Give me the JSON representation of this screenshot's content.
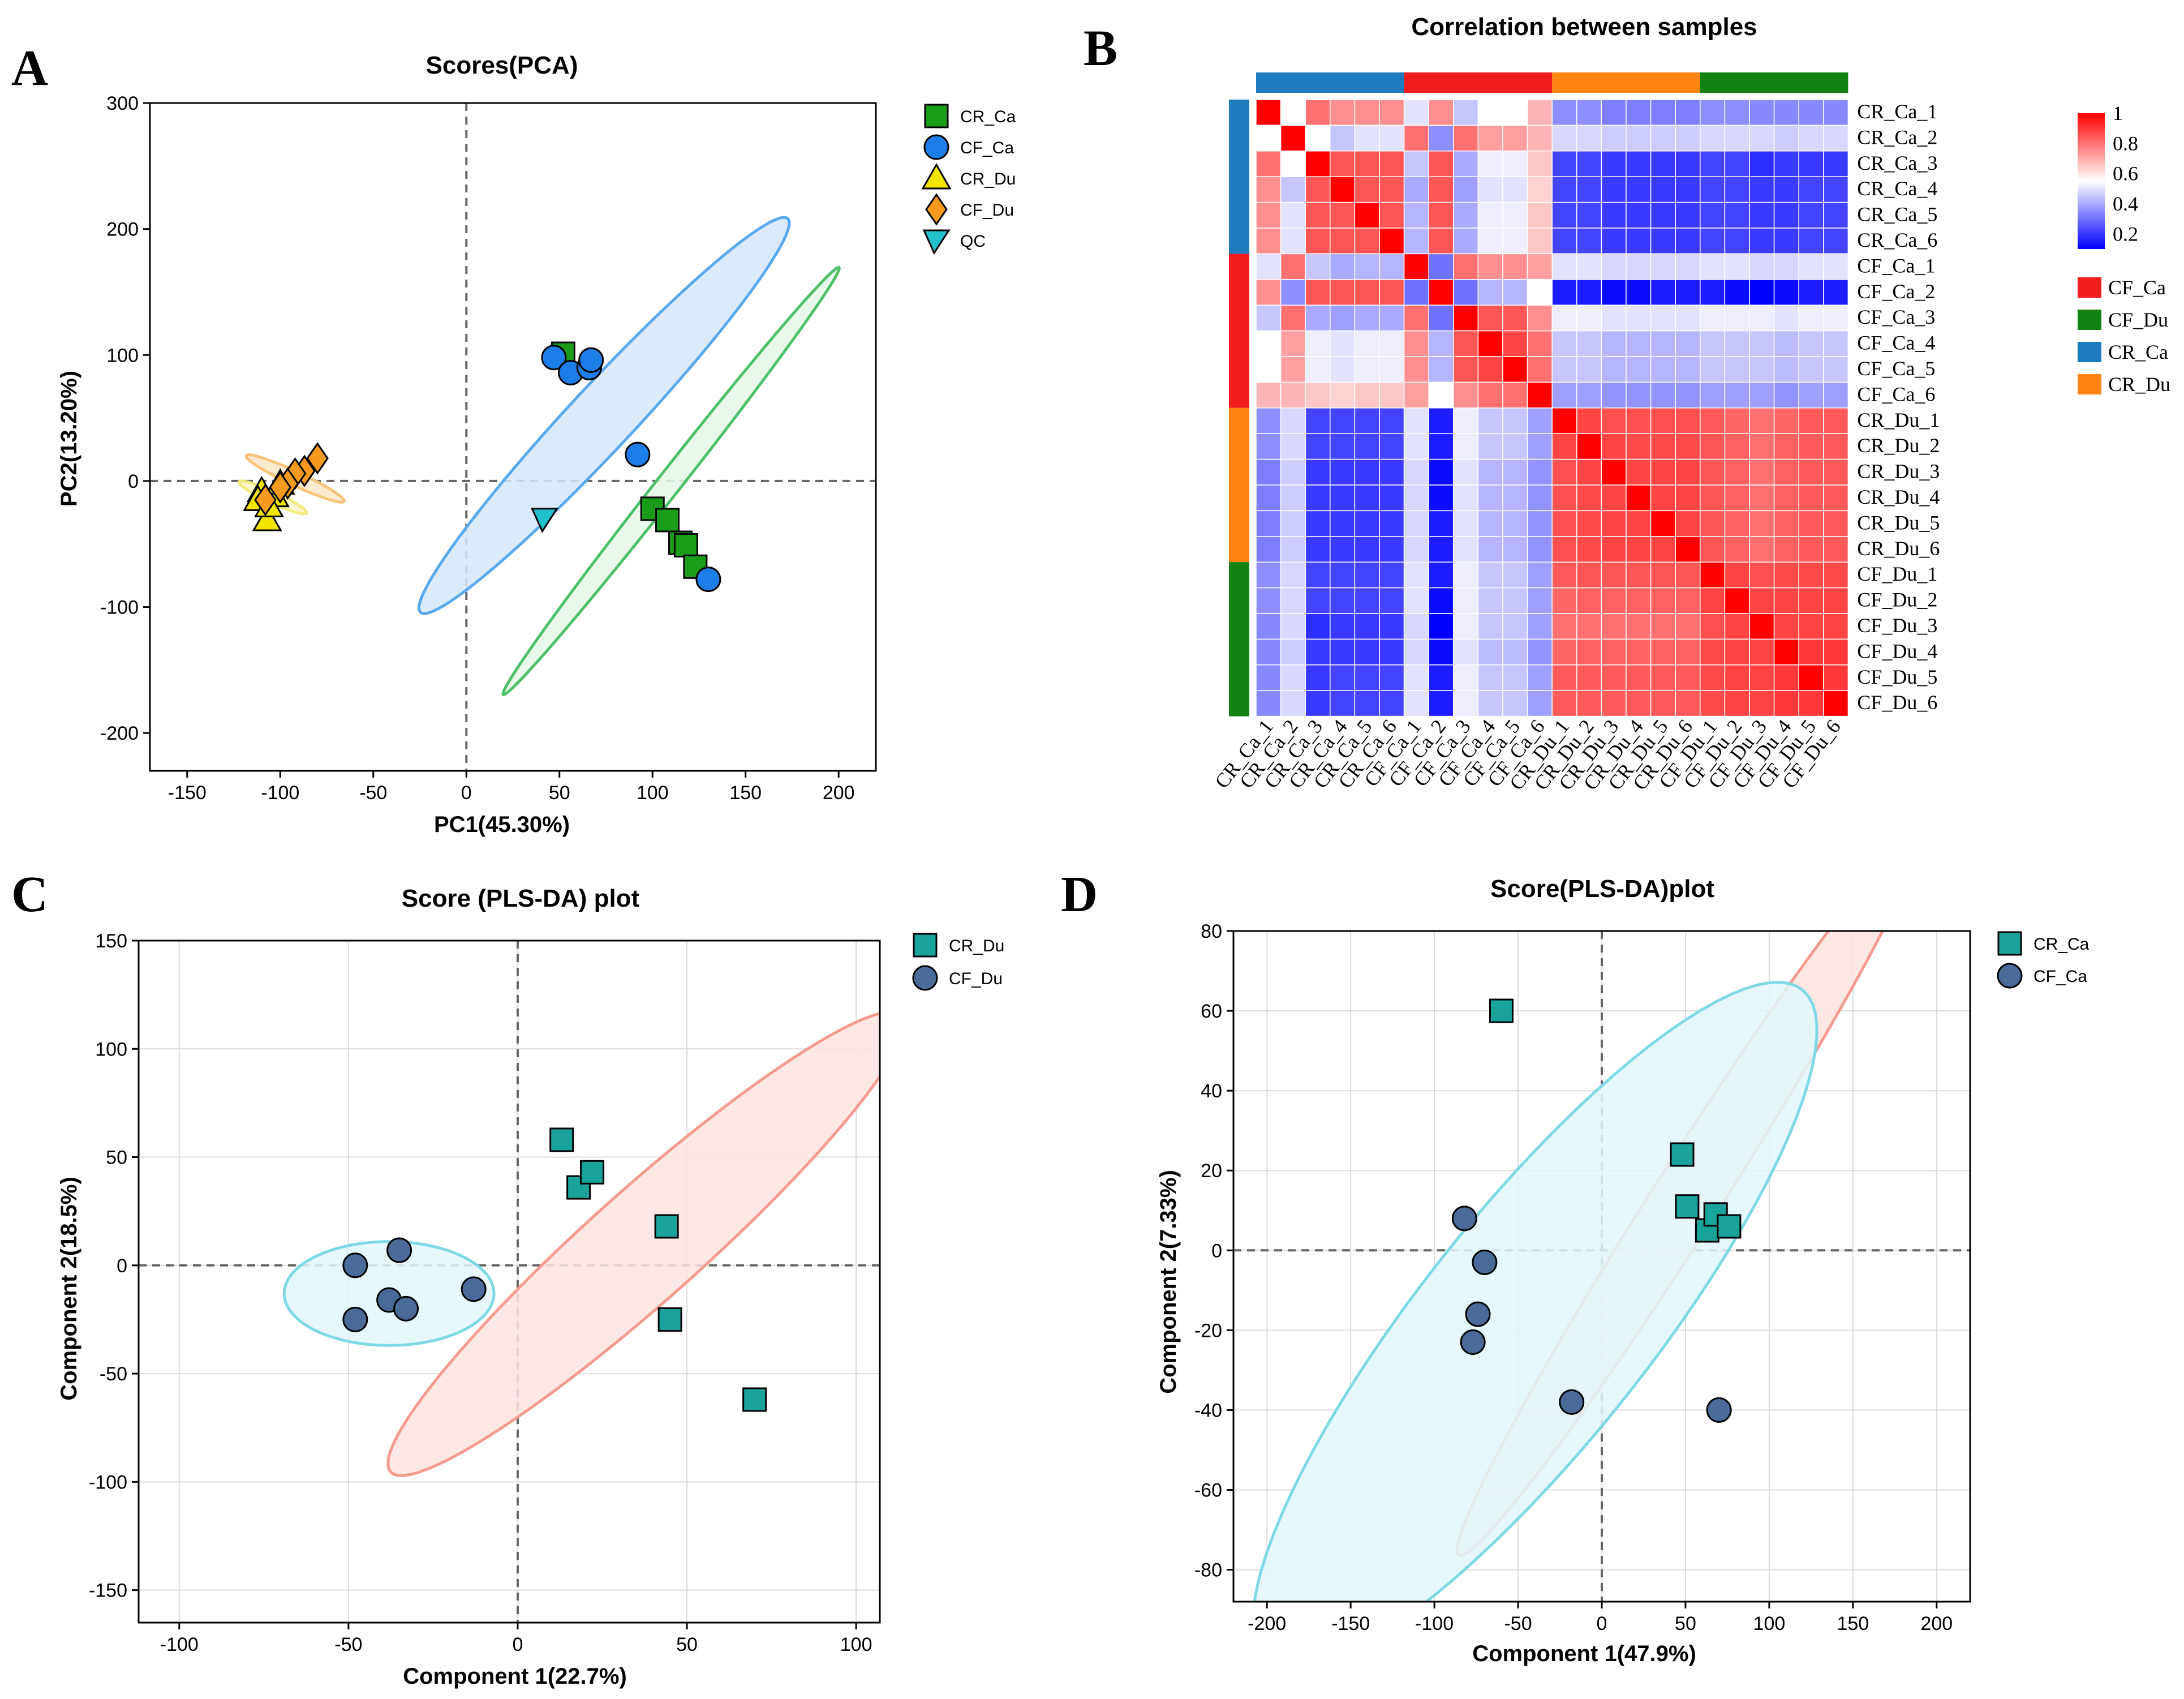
{
  "figure": {
    "letters": [
      "A",
      "B",
      "C",
      "D"
    ]
  },
  "chart_data": [
    {
      "id": "A",
      "type": "scatter",
      "title": "Scores(PCA)",
      "xlabel": "PC1(45.30%)",
      "ylabel": "PC2(13.20%)",
      "xlim": [
        -170,
        220
      ],
      "ylim": [
        -230,
        300
      ],
      "xticks": [
        -150,
        -100,
        -50,
        0,
        50,
        100,
        150,
        200
      ],
      "yticks": [
        -200,
        -100,
        0,
        100,
        200,
        300
      ],
      "grid": false,
      "legend_position": "right",
      "series": [
        {
          "name": "CR_Ca",
          "marker": "square",
          "color": "#1a9e1a",
          "points": [
            [
              52,
              101
            ],
            [
              100,
              -22
            ],
            [
              108,
              -31
            ],
            [
              115,
              -49
            ],
            [
              118,
              -51
            ],
            [
              123,
              -68
            ]
          ]
        },
        {
          "name": "CF_Ca",
          "marker": "circle",
          "color": "#1e7ee8",
          "points": [
            [
              47,
              98
            ],
            [
              56,
              86
            ],
            [
              66,
              90
            ],
            [
              67,
              96
            ],
            [
              92,
              21
            ],
            [
              130,
              -78
            ]
          ]
        },
        {
          "name": "CR_Du",
          "marker": "triangle",
          "color": "#f2e600",
          "points": [
            [
              -110,
              -8
            ],
            [
              -107,
              -31
            ],
            [
              -103,
              -12
            ],
            [
              -100,
              -2
            ],
            [
              -112,
              -15
            ],
            [
              -106,
              -20
            ]
          ]
        },
        {
          "name": "CF_Du",
          "marker": "diamond",
          "color": "#f59a1c",
          "points": [
            [
              -80,
              18
            ],
            [
              -87,
              8
            ],
            [
              -92,
              6
            ],
            [
              -96,
              -2
            ],
            [
              -100,
              -5
            ],
            [
              -108,
              -15
            ]
          ]
        },
        {
          "name": "QC",
          "marker": "wedge",
          "color": "#20c0cc",
          "points": [
            [
              42,
              -30
            ]
          ]
        }
      ],
      "ellipses": [
        {
          "group": "CF_Ca",
          "color": "#5aa8ee",
          "fill": "#d6e8fb",
          "cx": 74,
          "cy": 52,
          "rx": 185,
          "ry": 20,
          "angle_deg": -58
        },
        {
          "group": "CR_Ca",
          "color": "#4fc06a",
          "fill": "#e6f6e8",
          "cx": 110,
          "cy": 0,
          "rx": 192,
          "ry": 7,
          "angle_deg": -62
        },
        {
          "group": "CR_Du",
          "color": "#f3eb80",
          "fill": "#fbf6c8",
          "cx": -104,
          "cy": -13,
          "rx": 22,
          "ry": 4,
          "angle_deg": 35
        },
        {
          "group": "CF_Du",
          "color": "#f8c47a",
          "fill": "#fde8c8",
          "cx": -92,
          "cy": 2,
          "rx": 32,
          "ry": 5,
          "angle_deg": 35
        }
      ]
    },
    {
      "id": "B",
      "type": "heatmap",
      "title": "Correlation between samples",
      "samples": [
        "CR_Ca_1",
        "CR_Ca_2",
        "CR_Ca_3",
        "CR_Ca_4",
        "CR_Ca_5",
        "CR_Ca_6",
        "CF_Ca_1",
        "CF_Ca_2",
        "CF_Ca_3",
        "CF_Ca_4",
        "CF_Ca_5",
        "CF_Ca_6",
        "CR_Du_1",
        "CR_Du_2",
        "CR_Du_3",
        "CR_Du_4",
        "CR_Du_5",
        "CR_Du_6",
        "CF_Du_1",
        "CF_Du_2",
        "CF_Du_3",
        "CF_Du_4",
        "CF_Du_5",
        "CF_Du_6"
      ],
      "column_labels": [
        "CR_Ca_1",
        "CR_Ca_2",
        "CR_Ca_3",
        "CR_Ca_4",
        "CR_Ca_5",
        "CR_Ca_6",
        "CF_Ca_1",
        "CF_Ca_2",
        "CF_Ca_3",
        "CF_Ca_4",
        "CF_Ca_5",
        "CF_Ca_6",
        "CR_Du_1",
        "CR_Du_2",
        "CR_Du_3",
        "CR_Du_4",
        "CR_Du_5",
        "CR_Du_6",
        "CF_Du_1",
        "CF_Du_2",
        "CF_Du_3",
        "CF_Du_4",
        "CF_Du_5",
        "CF_Du_6"
      ],
      "column_groups": [
        "CR_Ca",
        "CF_Ca",
        "CR_Du",
        "CF_Du"
      ],
      "row_groups": [
        "CR_Ca",
        "CF_Ca",
        "CR_Du",
        "CF_Du"
      ],
      "group_colors": {
        "CF_Ca": "#ee1c1c",
        "CF_Du": "#128212",
        "CR_Ca": "#1f7bbf",
        "CR_Du": "#ff8412"
      },
      "colorbar": {
        "ticks": [
          1,
          0.8,
          0.6,
          0.4,
          0.2
        ],
        "tick_labels": [
          "1",
          "0.8",
          "0.6",
          "0.4",
          "0.2"
        ],
        "low_color": "#0000ff",
        "mid_color": "#ffffff",
        "high_color": "#ff0000",
        "range": [
          0.1,
          1
        ]
      },
      "legend_entries": [
        "CF_Ca",
        "CF_Du",
        "CR_Ca",
        "CR_Du"
      ],
      "matrix": [
        [
          1,
          0.55,
          0.8,
          0.75,
          0.75,
          0.75,
          0.5,
          0.75,
          0.45,
          0.55,
          0.55,
          0.68,
          0.35,
          0.35,
          0.32,
          0.32,
          0.32,
          0.32,
          0.35,
          0.35,
          0.34,
          0.34,
          0.34,
          0.34
        ],
        [
          0.55,
          1,
          0.55,
          0.45,
          0.5,
          0.5,
          0.8,
          0.35,
          0.8,
          0.72,
          0.72,
          0.68,
          0.48,
          0.48,
          0.46,
          0.46,
          0.46,
          0.46,
          0.48,
          0.48,
          0.48,
          0.46,
          0.48,
          0.48
        ],
        [
          0.8,
          0.55,
          1,
          0.85,
          0.85,
          0.85,
          0.45,
          0.85,
          0.4,
          0.52,
          0.52,
          0.65,
          0.22,
          0.22,
          0.2,
          0.2,
          0.2,
          0.2,
          0.22,
          0.22,
          0.18,
          0.2,
          0.2,
          0.2
        ],
        [
          0.75,
          0.45,
          0.85,
          1,
          0.85,
          0.85,
          0.4,
          0.85,
          0.38,
          0.5,
          0.5,
          0.63,
          0.22,
          0.22,
          0.2,
          0.2,
          0.2,
          0.2,
          0.22,
          0.22,
          0.2,
          0.2,
          0.22,
          0.22
        ],
        [
          0.75,
          0.5,
          0.85,
          0.85,
          1,
          0.85,
          0.42,
          0.85,
          0.4,
          0.52,
          0.52,
          0.65,
          0.22,
          0.22,
          0.2,
          0.2,
          0.2,
          0.2,
          0.22,
          0.22,
          0.2,
          0.2,
          0.22,
          0.22
        ],
        [
          0.75,
          0.5,
          0.85,
          0.85,
          0.85,
          1,
          0.42,
          0.85,
          0.4,
          0.52,
          0.52,
          0.65,
          0.22,
          0.22,
          0.2,
          0.2,
          0.2,
          0.2,
          0.22,
          0.22,
          0.2,
          0.2,
          0.22,
          0.22
        ],
        [
          0.5,
          0.8,
          0.45,
          0.4,
          0.42,
          0.42,
          1,
          0.3,
          0.8,
          0.75,
          0.75,
          0.72,
          0.5,
          0.5,
          0.48,
          0.48,
          0.48,
          0.48,
          0.5,
          0.5,
          0.48,
          0.48,
          0.5,
          0.5
        ],
        [
          0.75,
          0.35,
          0.85,
          0.85,
          0.85,
          0.85,
          0.3,
          1,
          0.3,
          0.42,
          0.42,
          0.55,
          0.15,
          0.15,
          0.12,
          0.12,
          0.15,
          0.15,
          0.15,
          0.12,
          0.08,
          0.12,
          0.15,
          0.15
        ],
        [
          0.45,
          0.8,
          0.4,
          0.38,
          0.4,
          0.4,
          0.8,
          0.3,
          1,
          0.85,
          0.85,
          0.75,
          0.52,
          0.52,
          0.5,
          0.5,
          0.5,
          0.5,
          0.52,
          0.52,
          0.52,
          0.5,
          0.52,
          0.52
        ],
        [
          0.55,
          0.72,
          0.52,
          0.5,
          0.52,
          0.52,
          0.75,
          0.42,
          0.85,
          1,
          0.88,
          0.8,
          0.45,
          0.45,
          0.42,
          0.42,
          0.42,
          0.42,
          0.45,
          0.45,
          0.45,
          0.43,
          0.45,
          0.45
        ],
        [
          0.55,
          0.72,
          0.52,
          0.5,
          0.52,
          0.52,
          0.75,
          0.42,
          0.85,
          0.88,
          1,
          0.8,
          0.45,
          0.45,
          0.42,
          0.42,
          0.42,
          0.42,
          0.45,
          0.45,
          0.45,
          0.43,
          0.45,
          0.45
        ],
        [
          0.68,
          0.68,
          0.65,
          0.63,
          0.65,
          0.65,
          0.72,
          0.55,
          0.75,
          0.8,
          0.8,
          1,
          0.38,
          0.38,
          0.36,
          0.36,
          0.36,
          0.36,
          0.38,
          0.38,
          0.38,
          0.36,
          0.38,
          0.38
        ],
        [
          0.35,
          0.48,
          0.22,
          0.22,
          0.22,
          0.22,
          0.5,
          0.15,
          0.52,
          0.45,
          0.45,
          0.38,
          1,
          0.88,
          0.86,
          0.86,
          0.86,
          0.86,
          0.84,
          0.82,
          0.8,
          0.82,
          0.84,
          0.84
        ],
        [
          0.35,
          0.48,
          0.22,
          0.22,
          0.22,
          0.22,
          0.5,
          0.15,
          0.52,
          0.45,
          0.45,
          0.38,
          0.88,
          1,
          0.88,
          0.87,
          0.87,
          0.87,
          0.85,
          0.83,
          0.8,
          0.83,
          0.84,
          0.84
        ],
        [
          0.32,
          0.46,
          0.2,
          0.2,
          0.2,
          0.2,
          0.48,
          0.12,
          0.5,
          0.42,
          0.42,
          0.36,
          0.86,
          0.88,
          1,
          0.88,
          0.88,
          0.88,
          0.85,
          0.83,
          0.8,
          0.83,
          0.84,
          0.84
        ],
        [
          0.32,
          0.46,
          0.2,
          0.2,
          0.2,
          0.2,
          0.48,
          0.12,
          0.5,
          0.42,
          0.42,
          0.36,
          0.86,
          0.87,
          0.88,
          1,
          0.88,
          0.88,
          0.85,
          0.83,
          0.8,
          0.83,
          0.84,
          0.84
        ],
        [
          0.32,
          0.46,
          0.2,
          0.2,
          0.2,
          0.2,
          0.48,
          0.15,
          0.5,
          0.42,
          0.42,
          0.36,
          0.86,
          0.87,
          0.88,
          0.88,
          1,
          0.88,
          0.85,
          0.83,
          0.8,
          0.83,
          0.84,
          0.84
        ],
        [
          0.32,
          0.46,
          0.2,
          0.2,
          0.2,
          0.2,
          0.48,
          0.15,
          0.5,
          0.42,
          0.42,
          0.36,
          0.86,
          0.87,
          0.88,
          0.88,
          0.88,
          1,
          0.85,
          0.83,
          0.8,
          0.83,
          0.84,
          0.84
        ],
        [
          0.35,
          0.48,
          0.22,
          0.22,
          0.22,
          0.22,
          0.5,
          0.15,
          0.52,
          0.45,
          0.45,
          0.38,
          0.84,
          0.85,
          0.85,
          0.85,
          0.85,
          0.85,
          1,
          0.88,
          0.86,
          0.87,
          0.87,
          0.87
        ],
        [
          0.35,
          0.48,
          0.22,
          0.22,
          0.22,
          0.22,
          0.5,
          0.12,
          0.52,
          0.45,
          0.45,
          0.38,
          0.82,
          0.83,
          0.83,
          0.83,
          0.83,
          0.83,
          0.88,
          1,
          0.88,
          0.88,
          0.88,
          0.88
        ],
        [
          0.34,
          0.48,
          0.18,
          0.2,
          0.2,
          0.2,
          0.48,
          0.08,
          0.52,
          0.45,
          0.45,
          0.38,
          0.8,
          0.8,
          0.8,
          0.8,
          0.8,
          0.8,
          0.86,
          0.88,
          1,
          0.88,
          0.88,
          0.88
        ],
        [
          0.34,
          0.46,
          0.2,
          0.2,
          0.2,
          0.2,
          0.48,
          0.12,
          0.5,
          0.43,
          0.43,
          0.36,
          0.82,
          0.83,
          0.83,
          0.83,
          0.83,
          0.83,
          0.87,
          0.88,
          0.88,
          1,
          0.9,
          0.9
        ],
        [
          0.34,
          0.48,
          0.2,
          0.22,
          0.22,
          0.22,
          0.5,
          0.15,
          0.52,
          0.45,
          0.45,
          0.38,
          0.84,
          0.84,
          0.84,
          0.84,
          0.84,
          0.84,
          0.87,
          0.88,
          0.88,
          0.9,
          1,
          0.9
        ],
        [
          0.34,
          0.48,
          0.2,
          0.22,
          0.22,
          0.22,
          0.5,
          0.15,
          0.52,
          0.45,
          0.45,
          0.38,
          0.84,
          0.84,
          0.84,
          0.84,
          0.84,
          0.84,
          0.87,
          0.88,
          0.88,
          0.9,
          0.9,
          1
        ]
      ]
    },
    {
      "id": "C",
      "type": "scatter",
      "title": "Score (PLS-DA) plot",
      "xlabel": "Component 1(22.7%)",
      "ylabel": "Component 2(18.5%)",
      "xlim": [
        -112,
        107
      ],
      "ylim": [
        -165,
        150
      ],
      "xticks": [
        -100,
        -50,
        0,
        50,
        100
      ],
      "yticks": [
        -150,
        -100,
        -50,
        0,
        50,
        100,
        150
      ],
      "grid": true,
      "legend_position": "top-right",
      "series": [
        {
          "name": "CR_Du",
          "marker": "square",
          "color": "#1aa39a",
          "points": [
            [
              13,
              58
            ],
            [
              18,
              36
            ],
            [
              22,
              43
            ],
            [
              44,
              18
            ],
            [
              45,
              -25
            ],
            [
              70,
              -62
            ]
          ]
        },
        {
          "name": "CF_Du",
          "marker": "circle",
          "color": "#4a6a9a",
          "points": [
            [
              -48,
              0
            ],
            [
              -48,
              -25
            ],
            [
              -38,
              -16
            ],
            [
              -35,
              7
            ],
            [
              -33,
              -20
            ],
            [
              -13,
              -11
            ]
          ]
        }
      ],
      "ellipses": [
        {
          "group": "CR_Du",
          "color": "#f59a8f",
          "fill": "#fde4e0",
          "cx": 38,
          "cy": 10,
          "rx": 130,
          "ry": 20,
          "angle_deg": -55
        },
        {
          "group": "CF_Du",
          "color": "#7fd8e6",
          "fill": "#e2f7fa",
          "cx": -38,
          "cy": -13,
          "rx": 31,
          "ry": 24,
          "angle_deg": 0
        }
      ]
    },
    {
      "id": "D",
      "type": "scatter",
      "title": "Score(PLS-DA)plot",
      "xlabel": "Component 1(47.9%)",
      "ylabel": "Component 2(7.33%)",
      "xlim": [
        -220,
        220
      ],
      "ylim": [
        -88,
        80
      ],
      "xticks": [
        -200,
        -150,
        -100,
        -50,
        0,
        50,
        100,
        150,
        200
      ],
      "yticks": [
        -80,
        -60,
        -40,
        -20,
        0,
        20,
        40,
        60,
        80
      ],
      "grid": true,
      "legend_position": "top-right",
      "series": [
        {
          "name": "CR_Ca",
          "marker": "square",
          "color": "#1aa39a",
          "points": [
            [
              -60,
              60
            ],
            [
              48,
              24
            ],
            [
              51,
              11
            ],
            [
              63,
              5
            ],
            [
              68,
              9
            ],
            [
              76,
              6
            ]
          ]
        },
        {
          "name": "CF_Ca",
          "marker": "circle",
          "color": "#4a6a9a",
          "points": [
            [
              -82,
              8
            ],
            [
              -70,
              -3
            ],
            [
              -74,
              -16
            ],
            [
              -77,
              -23
            ],
            [
              -18,
              -38
            ],
            [
              70,
              -40
            ]
          ]
        }
      ],
      "ellipses": [
        {
          "group": "CR_Ca",
          "color": "#f59a8f",
          "fill": "#fde4e0",
          "cx": 52,
          "cy": 14,
          "rx": 165,
          "ry": 13,
          "angle_deg": -33
        },
        {
          "group": "CF_Ca",
          "color": "#7fd8e6",
          "fill": "#e2f7fa",
          "cx": -40,
          "cy": -19,
          "rx": 185,
          "ry": 40,
          "angle_deg": -25
        }
      ]
    }
  ]
}
